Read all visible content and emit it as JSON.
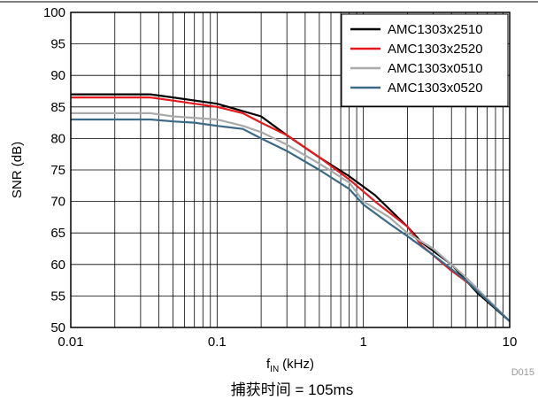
{
  "chart_data": {
    "type": "line",
    "xlabel_main": "f",
    "xlabel_sub": "IN",
    "xlabel_unit": "(kHz)",
    "ylabel": "SNR (dB)",
    "x_scale": "log",
    "xlim": [
      0.01,
      10
    ],
    "ylim": [
      50,
      100
    ],
    "x_ticks": [
      {
        "value": 0.01,
        "label": "0.01"
      },
      {
        "value": 0.1,
        "label": "0.1"
      },
      {
        "value": 1,
        "label": "1"
      },
      {
        "value": 10,
        "label": "10"
      }
    ],
    "y_ticks": [
      {
        "value": 50,
        "label": "50"
      },
      {
        "value": 55,
        "label": "55"
      },
      {
        "value": 60,
        "label": "60"
      },
      {
        "value": 65,
        "label": "65"
      },
      {
        "value": 70,
        "label": "70"
      },
      {
        "value": 75,
        "label": "75"
      },
      {
        "value": 80,
        "label": "80"
      },
      {
        "value": 85,
        "label": "85"
      },
      {
        "value": 90,
        "label": "90"
      },
      {
        "value": 95,
        "label": "95"
      },
      {
        "value": 100,
        "label": "100"
      }
    ],
    "grid": true,
    "legend_position": "top-right",
    "series": [
      {
        "name": "AMC1303x2510",
        "color": "#000000",
        "x": [
          0.01,
          0.02,
          0.035,
          0.05,
          0.1,
          0.2,
          0.3,
          0.5,
          0.8,
          1.2,
          2,
          2.5,
          4,
          6,
          10
        ],
        "y": [
          87,
          87,
          87,
          86.5,
          85.5,
          83.5,
          80.5,
          77,
          74,
          71,
          66,
          63.5,
          60,
          55.5,
          51
        ]
      },
      {
        "name": "AMC1303x2520",
        "color": "#e8191c",
        "x": [
          0.01,
          0.02,
          0.035,
          0.05,
          0.1,
          0.15,
          0.2,
          0.3,
          0.5,
          0.8,
          1.2,
          2,
          2.5,
          4,
          6,
          10
        ],
        "y": [
          86.5,
          86.5,
          86.5,
          86,
          85,
          84,
          82.5,
          80.5,
          77,
          73.5,
          70,
          66,
          63,
          59,
          56,
          51
        ]
      },
      {
        "name": "AMC1303x0510",
        "color": "#aaaaaa",
        "x": [
          0.01,
          0.02,
          0.035,
          0.05,
          0.1,
          0.15,
          0.2,
          0.3,
          0.5,
          0.8,
          1,
          1.5,
          2,
          3,
          5,
          10
        ],
        "y": [
          84,
          84,
          84,
          83.5,
          83,
          82,
          81,
          79,
          76,
          73,
          70,
          67.5,
          65,
          62.5,
          58,
          51
        ]
      },
      {
        "name": "AMC1303x0520",
        "color": "#3b6a86",
        "x": [
          0.01,
          0.02,
          0.035,
          0.05,
          0.07,
          0.1,
          0.15,
          0.2,
          0.3,
          0.5,
          0.8,
          1,
          1.5,
          2,
          3,
          5,
          10
        ],
        "y": [
          83,
          83,
          83,
          82.7,
          82.5,
          82,
          81.5,
          80,
          78,
          75,
          72,
          69.5,
          66.5,
          64.5,
          61.5,
          57.5,
          51
        ]
      }
    ]
  },
  "figure_id": "D015",
  "caption": "捕获时间 = 105ms"
}
